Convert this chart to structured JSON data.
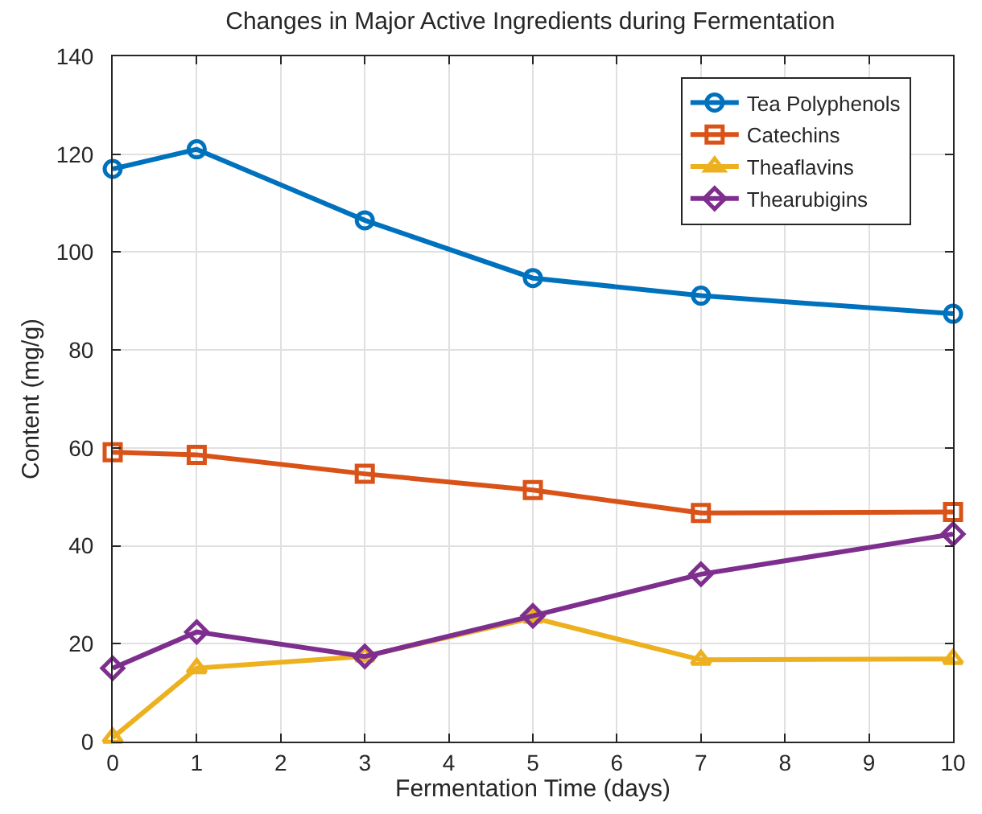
{
  "chart_data": {
    "type": "line",
    "title": "Changes in Major Active Ingredients during Fermentation",
    "xlabel": "Fermentation Time (days)",
    "ylabel": "Content (mg/g)",
    "x": [
      0,
      1,
      3,
      5,
      7,
      10
    ],
    "series": [
      {
        "name": "Tea Polyphenols",
        "color": "#0072bd",
        "marker": "circle",
        "values": [
          117,
          121,
          106.5,
          94.7,
          91.1,
          87.4
        ]
      },
      {
        "name": "Catechins",
        "color": "#d95319",
        "marker": "square",
        "values": [
          59.1,
          58.6,
          54.7,
          51.4,
          46.7,
          46.9
        ]
      },
      {
        "name": "Theaflavins",
        "color": "#edb120",
        "marker": "triangle",
        "values": [
          0.8,
          15,
          17.4,
          25.3,
          16.7,
          16.9
        ]
      },
      {
        "name": "Thearubigins",
        "color": "#7e2f8e",
        "marker": "diamond",
        "values": [
          15,
          22.4,
          17.4,
          25.7,
          34.2,
          42.4
        ]
      }
    ],
    "xlim": [
      0,
      10
    ],
    "xticks": [
      0,
      1,
      2,
      3,
      4,
      5,
      6,
      7,
      8,
      9,
      10
    ],
    "ylim": [
      0,
      140
    ],
    "yticks": [
      0,
      20,
      40,
      60,
      80,
      100,
      120,
      140
    ],
    "grid": true,
    "legend": "top right",
    "line_style": "solid"
  }
}
